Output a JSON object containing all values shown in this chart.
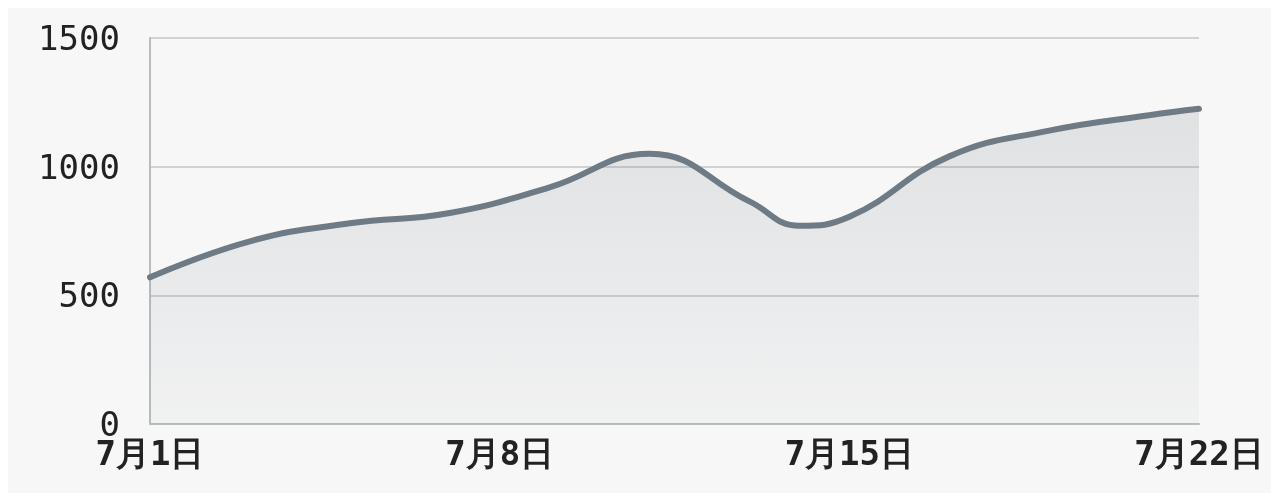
{
  "chart_data": {
    "type": "area",
    "x": [
      "--07-01",
      "--07-03",
      "--07-05",
      "--07-07",
      "--07-09",
      "--07-11",
      "--07-13",
      "--07-14",
      "--07-15",
      "--07-17",
      "--07-19",
      "--07-21",
      "--07-22"
    ],
    "series": [
      {
        "color": "#6e7a84",
        "values": [
          570,
          710,
          780,
          820,
          920,
          1050,
          865,
          770,
          805,
          1040,
          1140,
          1200,
          1225
        ]
      }
    ],
    "xlim": [
      "--07-01",
      "--07-22"
    ],
    "xticks": [
      {
        "value": "--07-01",
        "label": "7月1日"
      },
      {
        "value": "--07-08",
        "label": "7月8日"
      },
      {
        "value": "--07-15",
        "label": "7月15日"
      },
      {
        "value": "--07-22",
        "label": "7月22日"
      }
    ],
    "ylim": [
      0,
      1500
    ],
    "yticks": [
      0,
      500,
      1000,
      1500
    ],
    "grid": "y",
    "marker": "none",
    "line_style": "solid"
  }
}
